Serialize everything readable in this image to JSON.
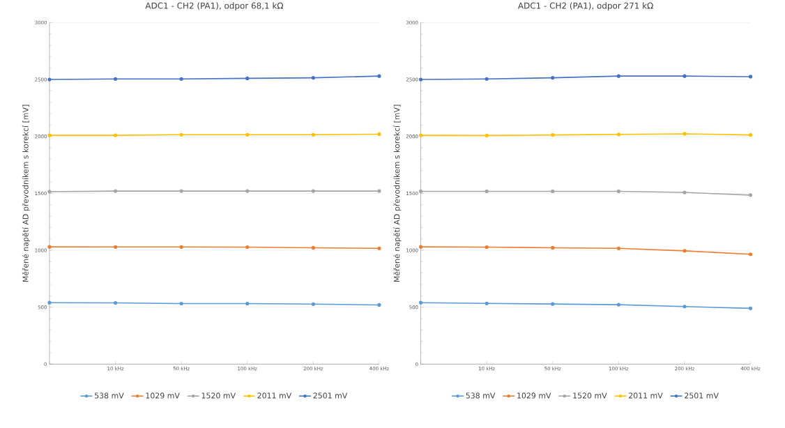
{
  "chart_data": [
    {
      "type": "line",
      "title": "ADC1 - CH2 (PA1), odpor 68,1 kΩ",
      "ylabel": "Měřené napětí AD převodníkem s korekcí [mV]",
      "categories": [
        null,
        "10 kHz",
        "50 kHz",
        "100 kHz",
        "200 kHz",
        "400 kHz"
      ],
      "ylim": [
        0,
        3000
      ],
      "yticks": [
        0,
        500,
        1000,
        1500,
        2000,
        2500,
        3000
      ],
      "grid": "y",
      "legend": "bottom",
      "marker": "circle",
      "line_style": "solid",
      "series": [
        {
          "name": "538 mV",
          "color": "#5b9bd5",
          "values": [
            540,
            538,
            532,
            532,
            527,
            520
          ]
        },
        {
          "name": "1029 mV",
          "color": "#ed7d31",
          "values": [
            1030,
            1029,
            1029,
            1028,
            1022,
            1017
          ]
        },
        {
          "name": "1520 mV",
          "color": "#a5a5a5",
          "values": [
            1515,
            1520,
            1520,
            1520,
            1520,
            1520
          ]
        },
        {
          "name": "2011 mV",
          "color": "#ffc000",
          "values": [
            2010,
            2010,
            2015,
            2015,
            2015,
            2020
          ]
        },
        {
          "name": "2501 mV",
          "color": "#4472c4",
          "values": [
            2500,
            2505,
            2505,
            2510,
            2515,
            2530
          ]
        }
      ]
    },
    {
      "type": "line",
      "title": "ADC1 - CH2 (PA1), odpor 271 kΩ",
      "ylabel": "Měřené napětí AD převodníkem s korekcí [mV]",
      "categories": [
        null,
        "10 kHz",
        "50 kHz",
        "100 kHz",
        "200 kHz",
        "400 kHz"
      ],
      "ylim": [
        0,
        3000
      ],
      "yticks": [
        0,
        500,
        1000,
        1500,
        2000,
        2500,
        3000
      ],
      "grid": "y",
      "legend": "bottom",
      "marker": "circle",
      "line_style": "solid",
      "series": [
        {
          "name": "538 mV",
          "color": "#5b9bd5",
          "values": [
            540,
            533,
            528,
            522,
            506,
            490
          ]
        },
        {
          "name": "1029 mV",
          "color": "#ed7d31",
          "values": [
            1030,
            1028,
            1022,
            1017,
            995,
            965
          ]
        },
        {
          "name": "1520 mV",
          "color": "#a5a5a5",
          "values": [
            1518,
            1518,
            1518,
            1518,
            1508,
            1485
          ]
        },
        {
          "name": "2011 mV",
          "color": "#ffc000",
          "values": [
            2010,
            2008,
            2013,
            2018,
            2023,
            2013
          ]
        },
        {
          "name": "2501 mV",
          "color": "#4472c4",
          "values": [
            2500,
            2505,
            2515,
            2530,
            2530,
            2525
          ]
        }
      ]
    }
  ]
}
